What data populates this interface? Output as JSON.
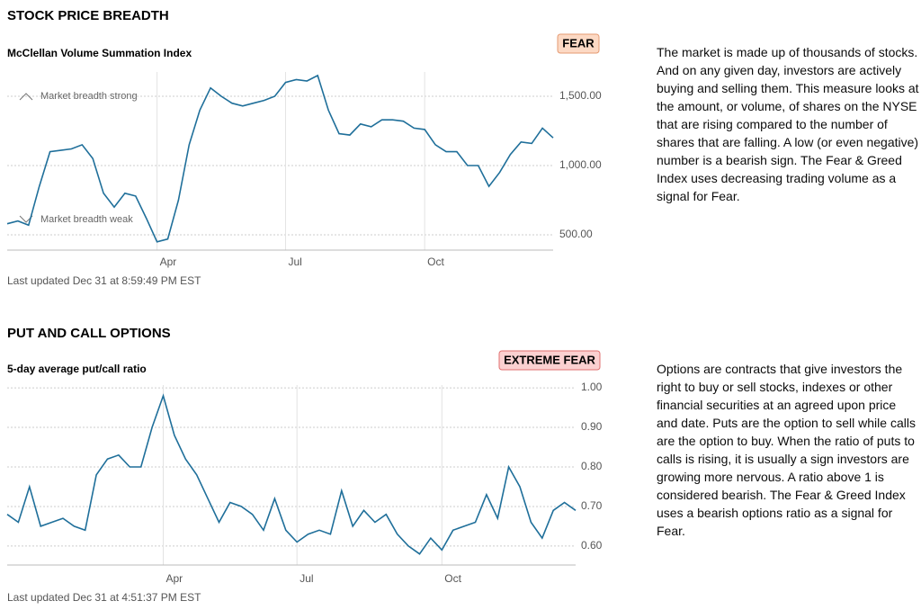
{
  "chart_data": [
    {
      "type": "line",
      "title": "STOCK PRICE BREADTH",
      "subtitle": "McClellan Volume Summation Index",
      "badge": "FEAR",
      "badge_color": "#fcd9c4",
      "description": "The market is made up of thousands of stocks. And on any given day, investors are actively buying and selling them. This measure looks at the amount, or volume, of shares on the NYSE that are rising compared to the number of shares that are falling. A low (or even negative) number is a bearish sign. The Fear & Greed Index uses decreasing trading volume as a signal for Fear.",
      "updated": "Last updated Dec 31 at 8:59:49 PM EST",
      "annotations": [
        "Market breadth strong",
        "Market breadth weak"
      ],
      "categories": [
        null,
        null,
        null,
        null,
        null,
        null,
        null,
        null,
        null,
        null,
        null,
        null,
        null,
        null,
        "Apr",
        null,
        null,
        null,
        null,
        null,
        null,
        null,
        null,
        null,
        null,
        null,
        "Jul",
        null,
        null,
        null,
        null,
        null,
        null,
        null,
        null,
        null,
        null,
        null,
        null,
        "Oct",
        null,
        null,
        null,
        null,
        null,
        null,
        null,
        null,
        null,
        null,
        null,
        null
      ],
      "series": [
        {
          "name": "McClellan Volume Summation Index",
          "color": "#1f6f9a",
          "values": [
            580,
            600,
            570,
            850,
            1100,
            1110,
            1120,
            1150,
            1050,
            800,
            700,
            800,
            780,
            620,
            450,
            470,
            750,
            1150,
            1400,
            1560,
            1500,
            1450,
            1430,
            1450,
            1470,
            1500,
            1600,
            1620,
            1610,
            1650,
            1400,
            1230,
            1220,
            1300,
            1280,
            1330,
            1330,
            1320,
            1270,
            1260,
            1150,
            1100,
            1100,
            1000,
            1000,
            850,
            950,
            1080,
            1170,
            1160,
            1270,
            1200
          ]
        }
      ],
      "ylim": [
        390,
        1675
      ],
      "yticks": [
        {
          "value": 500,
          "label": "500.00"
        },
        {
          "value": 1000,
          "label": "1,000.00"
        },
        {
          "value": 1500,
          "label": "1,500.00"
        }
      ],
      "grid": true
    },
    {
      "type": "line",
      "title": "PUT AND CALL OPTIONS",
      "subtitle": "5-day average put/call ratio",
      "badge": "EXTREME FEAR",
      "badge_color": "#fbd0d0",
      "description": "Options are contracts that give investors the right to buy or sell stocks, indexes or other financial securities at an agreed upon price and date. Puts are the option to sell while calls are the option to buy. When the ratio of puts to calls is rising, it is usually a sign investors are growing more nervous. A ratio above 1 is considered bearish. The Fear & Greed Index uses a bearish options ratio as a signal for Fear.",
      "updated": "Last updated Dec 31 at 4:51:37 PM EST",
      "categories": [
        null,
        null,
        null,
        null,
        null,
        null,
        null,
        null,
        null,
        null,
        null,
        null,
        null,
        null,
        "Apr",
        null,
        null,
        null,
        null,
        null,
        null,
        null,
        null,
        null,
        null,
        null,
        "Jul",
        null,
        null,
        null,
        null,
        null,
        null,
        null,
        null,
        null,
        null,
        null,
        null,
        "Oct",
        null,
        null,
        null,
        null,
        null,
        null,
        null,
        null,
        null,
        null,
        null,
        null
      ],
      "series": [
        {
          "name": "5-day average put/call ratio",
          "color": "#1f6f9a",
          "values": [
            0.68,
            0.66,
            0.75,
            0.65,
            0.66,
            0.67,
            0.65,
            0.64,
            0.78,
            0.82,
            0.83,
            0.8,
            0.8,
            0.9,
            0.98,
            0.88,
            0.82,
            0.78,
            0.72,
            0.66,
            0.71,
            0.7,
            0.68,
            0.64,
            0.72,
            0.64,
            0.61,
            0.63,
            0.64,
            0.63,
            0.74,
            0.65,
            0.69,
            0.66,
            0.68,
            0.63,
            0.6,
            0.58,
            0.62,
            0.59,
            0.64,
            0.65,
            0.66,
            0.73,
            0.67,
            0.8,
            0.75,
            0.66,
            0.62,
            0.69,
            0.71,
            0.69
          ]
        }
      ],
      "ylim": [
        0.552,
        1.007
      ],
      "yticks": [
        {
          "value": 0.6,
          "label": "0.60"
        },
        {
          "value": 0.7,
          "label": "0.70"
        },
        {
          "value": 0.8,
          "label": "0.80"
        },
        {
          "value": 0.9,
          "label": "0.90"
        },
        {
          "value": 1,
          "label": "1.00"
        }
      ],
      "grid": true
    }
  ]
}
